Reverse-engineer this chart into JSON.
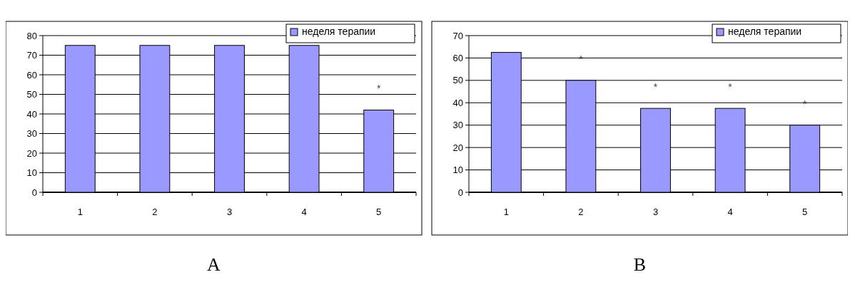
{
  "chart_data": [
    {
      "type": "bar",
      "title": "A",
      "categories": [
        "1",
        "2",
        "3",
        "4",
        "5"
      ],
      "series": [
        {
          "name": "неделя терапии",
          "color": "#9999ff",
          "values": [
            75,
            75,
            75,
            75,
            42
          ]
        }
      ],
      "ylim": [
        0,
        80
      ],
      "yticks": [
        0,
        10,
        20,
        30,
        40,
        50,
        60,
        70,
        80
      ],
      "grid": "y",
      "legend": "top right",
      "annotations": [
        {
          "text": "*",
          "x": "5",
          "y": 42
        }
      ]
    },
    {
      "type": "bar",
      "title": "B",
      "categories": [
        "1",
        "2",
        "3",
        "4",
        "5"
      ],
      "series": [
        {
          "name": "неделя терапии",
          "color": "#9999ff",
          "values": [
            62.5,
            50,
            37.5,
            37.5,
            30
          ]
        }
      ],
      "ylim": [
        0,
        70
      ],
      "yticks": [
        0,
        10,
        20,
        30,
        40,
        50,
        60,
        70
      ],
      "grid": "y",
      "legend": "top right",
      "annotations": [
        {
          "text": "*",
          "x": "2",
          "y": 50
        },
        {
          "text": "*",
          "x": "3",
          "y": 37.5
        },
        {
          "text": "*",
          "x": "4",
          "y": 37.5
        },
        {
          "text": "*",
          "x": "5",
          "y": 30
        }
      ]
    }
  ]
}
